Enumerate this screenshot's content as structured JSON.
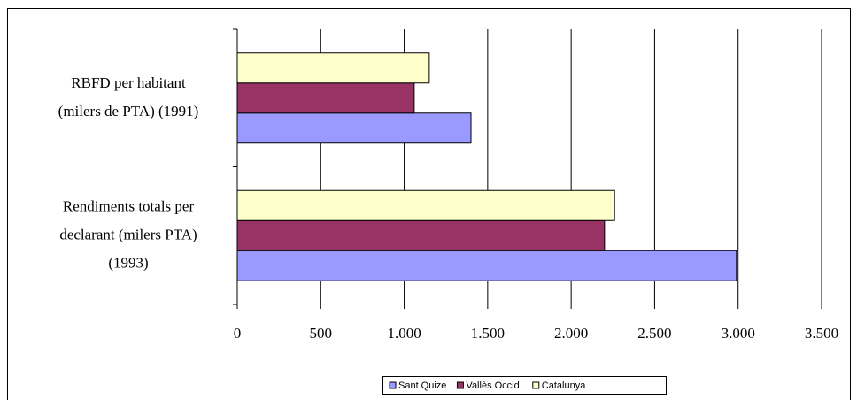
{
  "chart_data": {
    "type": "barh",
    "categories": [
      "RBFD per habitant\n(milers de PTA) (1991)",
      "Rendiments totals per\ndeclarant (milers PTA)\n(1993)"
    ],
    "series": [
      {
        "name": "Sant Quize",
        "color": "#9999ff",
        "values": [
          1400,
          2990
        ]
      },
      {
        "name": "Vallès Occid.",
        "color": "#993366",
        "values": [
          1060,
          2200
        ]
      },
      {
        "name": "Catalunya",
        "color": "#ffffcc",
        "values": [
          1150,
          2260
        ]
      }
    ],
    "xlim": [
      0,
      3500
    ],
    "xticks": [
      0,
      500,
      {
        "value": 1000,
        "label": "1.000"
      },
      {
        "value": 1500,
        "label": "1.500"
      },
      {
        "value": 2000,
        "label": "2.000"
      },
      {
        "value": 2500,
        "label": "2.500"
      },
      {
        "value": 3000,
        "label": "3.000"
      },
      {
        "value": 3500,
        "label": "3.500"
      }
    ],
    "grid": true,
    "legend": "bottom"
  }
}
